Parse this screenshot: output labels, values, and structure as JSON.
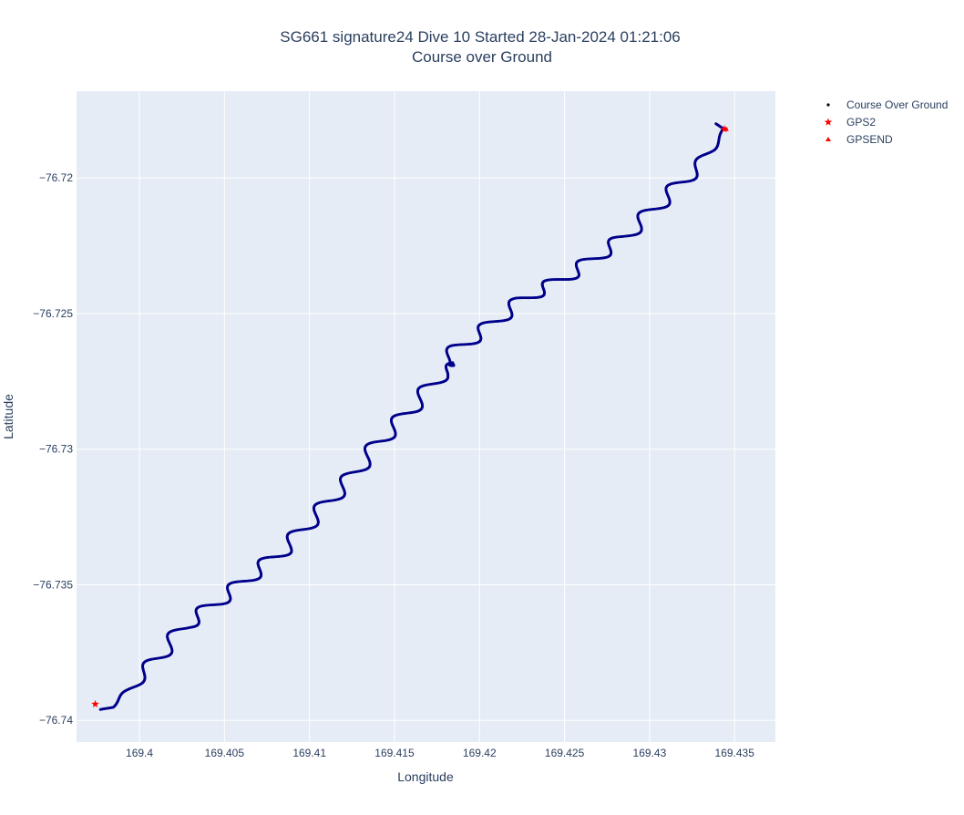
{
  "chart_data": {
    "type": "scatter",
    "title": "SG661 signature24 Dive 10 Started 28-Jan-2024 01:21:06",
    "subtitle": "Course over Ground",
    "xlabel": "Longitude",
    "ylabel": "Latitude",
    "xlim": [
      169.3963,
      169.4374
    ],
    "ylim": [
      -76.7408,
      -76.7168
    ],
    "x_ticks": [
      169.4,
      169.405,
      169.41,
      169.415,
      169.42,
      169.425,
      169.43,
      169.435
    ],
    "x_tick_labels": [
      "169.4",
      "169.405",
      "169.41",
      "169.415",
      "169.42",
      "169.425",
      "169.43",
      "169.435"
    ],
    "y_ticks": [
      -76.72,
      -76.725,
      -76.73,
      -76.735,
      -76.74
    ],
    "y_tick_labels": [
      "−76.72",
      "−76.725",
      "−76.73",
      "−76.735",
      "−76.74"
    ],
    "grid": true,
    "legend_position": "top-right",
    "series": [
      {
        "name": "Course Over Ground",
        "marker": "dot",
        "color": "#00008b",
        "track_anchors": [
          [
            169.3977,
            -76.7396
          ],
          [
            169.3984,
            -76.7395
          ],
          [
            169.3994,
            -76.7389
          ],
          [
            169.4027,
            -76.7365
          ],
          [
            169.4055,
            -76.7352
          ],
          [
            169.4085,
            -76.7337
          ],
          [
            169.41,
            -76.7327
          ],
          [
            169.4125,
            -76.731
          ],
          [
            169.414,
            -76.7298
          ],
          [
            169.416,
            -76.7285
          ],
          [
            169.4178,
            -76.7272
          ],
          [
            169.4188,
            -76.7269
          ],
          [
            169.4178,
            -76.7268
          ],
          [
            169.4187,
            -76.7263
          ],
          [
            169.4205,
            -76.7255
          ],
          [
            169.4225,
            -76.7245
          ],
          [
            169.4255,
            -76.7235
          ],
          [
            169.4285,
            -76.7222
          ],
          [
            169.4305,
            -76.721
          ],
          [
            169.4325,
            -76.7198
          ],
          [
            169.4337,
            -76.7189
          ],
          [
            169.4344,
            -76.7182
          ],
          [
            169.4339,
            -76.718
          ]
        ],
        "wiggle_amplitude": 0.0005,
        "wiggle_count": 23
      },
      {
        "name": "GPS2",
        "marker": "star",
        "color": "#ff0000",
        "x": [
          169.3974,
          169.4344
        ],
        "y": [
          -76.7394,
          -76.7182
        ]
      },
      {
        "name": "GPSEND",
        "marker": "triangle-up",
        "color": "#ff0000",
        "x": [
          169.4345
        ],
        "y": [
          -76.7182
        ]
      }
    ],
    "colors": {
      "plot_background": "#e5ecf6",
      "grid": "#ffffff",
      "text": "#2a3f5f"
    }
  }
}
